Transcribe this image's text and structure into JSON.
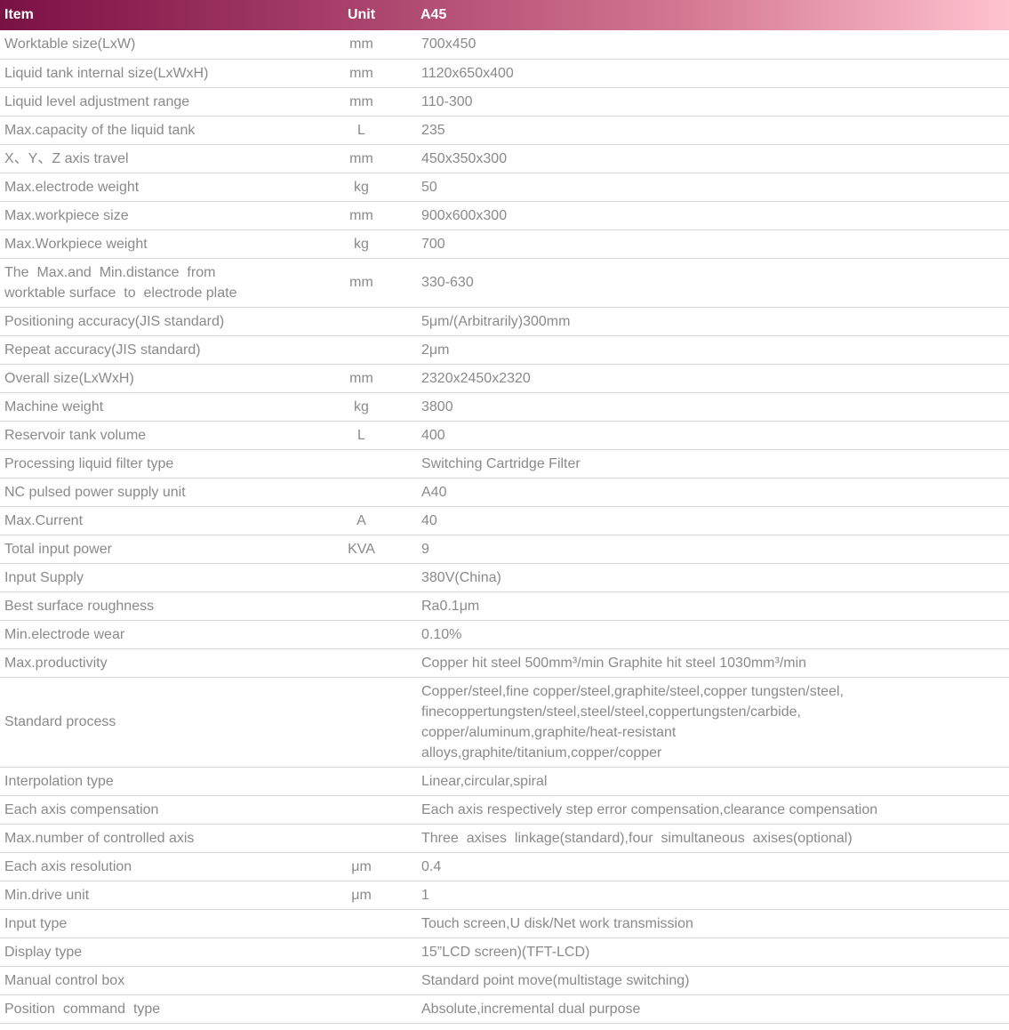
{
  "colors": {
    "header_gradient_start": "#7a1143",
    "header_gradient_mid": "#a63e69",
    "header_gradient_end": "#ffc3d0",
    "header_text": "#ffffff",
    "body_text": "#8a8a8a",
    "row_divider": "#d9d9d9",
    "background": "#ffffff"
  },
  "table": {
    "columns": [
      {
        "key": "item",
        "label": "Item"
      },
      {
        "key": "unit",
        "label": "Unit"
      },
      {
        "key": "value",
        "label": "A45"
      }
    ],
    "rows": [
      {
        "item": "Worktable size(LxW)",
        "unit": "mm",
        "value": "700x450"
      },
      {
        "item": "Liquid tank internal size(LxWxH)",
        "unit": "mm",
        "value": "1120x650x400"
      },
      {
        "item": "Liquid level adjustment range",
        "unit": "mm",
        "value": "110-300"
      },
      {
        "item": "Max.capacity of the liquid tank",
        "unit": "L",
        "value": "235"
      },
      {
        "item": "X、Y、Z axis travel",
        "unit": "mm",
        "value": "450x350x300"
      },
      {
        "item": "Max.electrode weight",
        "unit": "kg",
        "value": "50"
      },
      {
        "item": "Max.workpiece size",
        "unit": "mm",
        "value": "900x600x300"
      },
      {
        "item": "Max.Workpiece weight",
        "unit": "kg",
        "value": "700"
      },
      {
        "item": "The  Max.and  Min.distance  from\nworktable surface  to  electrode plate",
        "unit": "mm",
        "value": "330-630"
      },
      {
        "item": "Positioning accuracy(JIS standard)",
        "unit": "",
        "value": "5μm/(Arbitrarily)300mm"
      },
      {
        "item": "Repeat accuracy(JIS standard)",
        "unit": "",
        "value": "2μm"
      },
      {
        "item": "Overall size(LxWxH)",
        "unit": "mm",
        "value": "2320x2450x2320"
      },
      {
        "item": "Machine weight",
        "unit": "kg",
        "value": "3800"
      },
      {
        "item": "Reservoir tank volume",
        "unit": "L",
        "value": "400"
      },
      {
        "item": "Processing liquid filter type",
        "unit": "",
        "value": "Switching Cartridge Filter"
      },
      {
        "item": "NC pulsed power supply unit",
        "unit": "",
        "value": "A40"
      },
      {
        "item": "Max.Current",
        "unit": "A",
        "value": "40"
      },
      {
        "item": "Total input power",
        "unit": "KVA",
        "value": "9"
      },
      {
        "item": "Input Supply",
        "unit": "",
        "value": "380V(China)"
      },
      {
        "item": "Best surface roughness",
        "unit": "",
        "value": "Ra0.1μm"
      },
      {
        "item": "Min.electrode wear",
        "unit": "",
        "value": "0.10%"
      },
      {
        "item": "Max.productivity",
        "unit": "",
        "value": "Copper hit steel 500mm³/min Graphite hit steel 1030mm³/min"
      },
      {
        "item": "Standard process",
        "unit": "",
        "value": "Copper/steel,fine copper/steel,graphite/steel,copper tungsten/steel,\nfinecoppertungsten/steel,steel/steel,coppertungsten/carbide,\ncopper/aluminum,graphite/heat-resistant\nalloys,graphite/titanium,copper/copper"
      },
      {
        "item": "Interpolation type",
        "unit": "",
        "value": "Linear,circular,spiral"
      },
      {
        "item": "Each axis compensation",
        "unit": "",
        "value": "Each axis respectively step error compensation,clearance compensation"
      },
      {
        "item": "Max.number of controlled axis",
        "unit": "",
        "value": "Three  axises  linkage(standard),four  simultaneous  axises(optional)"
      },
      {
        "item": "Each axis resolution",
        "unit": "μm",
        "value": "0.4"
      },
      {
        "item": "Min.drive unit",
        "unit": "μm",
        "value": "1"
      },
      {
        "item": "Input type",
        "unit": "",
        "value": "Touch screen,U disk/Net work transmission"
      },
      {
        "item": "Display type",
        "unit": "",
        "value": "15”LCD screen)(TFT-LCD)"
      },
      {
        "item": "Manual control box",
        "unit": "",
        "value": "Standard point move(multistage switching)"
      },
      {
        "item": "Position  command  type",
        "unit": "",
        "value": "Absolute,incremental dual purpose"
      }
    ]
  }
}
